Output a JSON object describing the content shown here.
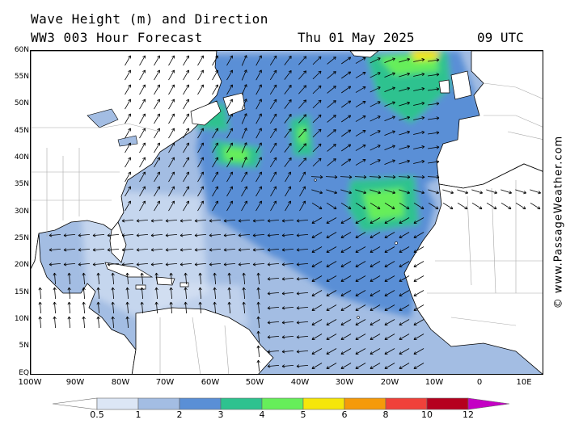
{
  "header": {
    "title_line1": "Wave Height (m) and Direction",
    "title_line2": "WW3 003 Hour Forecast",
    "date": "Thu 01 May 2025",
    "time": "09 UTC"
  },
  "credit": "© www.PassageWeather.com",
  "map": {
    "lat_labels": [
      "60N",
      "55N",
      "50N",
      "45N",
      "40N",
      "35N",
      "30N",
      "25N",
      "20N",
      "15N",
      "10N",
      "5N",
      "EQ"
    ],
    "lon_labels": [
      "100W",
      "90W",
      "80W",
      "70W",
      "60W",
      "50W",
      "40W",
      "30W",
      "20W",
      "10W",
      "0",
      "10E"
    ],
    "colors": {
      "land": "#ffffff",
      "borders": "#a8a8a8",
      "coast": "#000000",
      "arrows": "#000000"
    }
  },
  "colorbar": {
    "labels": [
      "0.5",
      "1",
      "2",
      "3",
      "4",
      "5",
      "6",
      "8",
      "10",
      "12"
    ],
    "colors": [
      "#ffffff",
      "#dce6f5",
      "#a3bde3",
      "#5a8fd6",
      "#2ec28f",
      "#66ee5a",
      "#f5e60a",
      "#f59a0a",
      "#f0413a",
      "#b5001e",
      "#c400c4"
    ]
  }
}
